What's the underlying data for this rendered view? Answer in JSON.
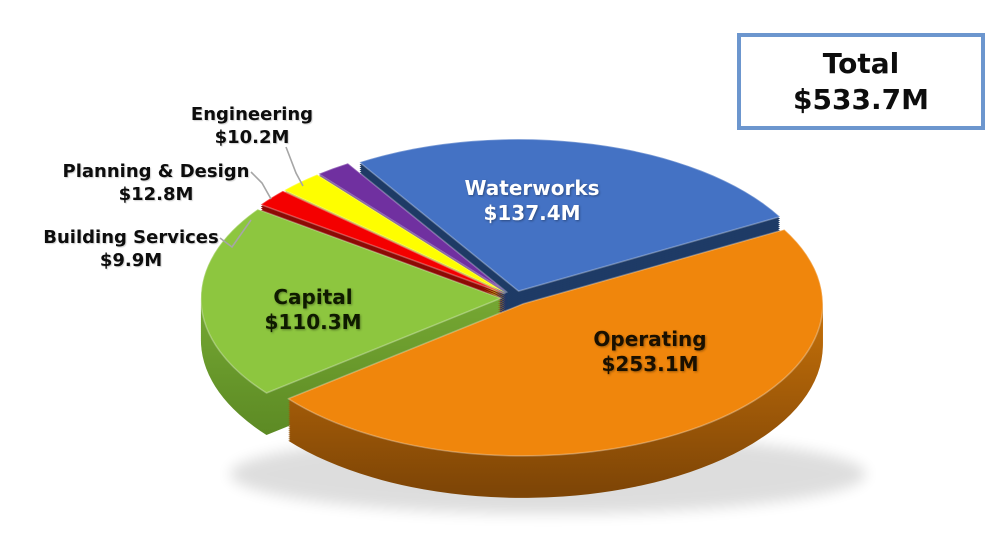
{
  "total_box": {
    "line1": "Total",
    "line2": "$533.7M",
    "border_color": "#6C96CE"
  },
  "chart_data": {
    "type": "pie",
    "style": "3d-exploded",
    "title": "",
    "unit": "$M",
    "total": 533.7,
    "total_label": "$533.7M",
    "start_angle_deg": 122,
    "direction": "clockwise",
    "legend": "none",
    "leader_line_color": "#A6A6A6",
    "slices": [
      {
        "id": "waterworks",
        "name": "Waterworks",
        "value": 137.4,
        "value_label": "$137.4M",
        "color": "#4472C4",
        "side_color": "#1E3B66",
        "label_placement": "inside",
        "label_color": "#FFFFFF"
      },
      {
        "id": "operating",
        "name": "Operating",
        "value": 253.1,
        "value_label": "$253.1M",
        "color": "#F0860C",
        "side_gradient": [
          "#D0770A",
          "#7E4506"
        ],
        "side_color": "#9C5A08",
        "label_placement": "inside",
        "label_color": "#1A1000"
      },
      {
        "id": "capital",
        "name": "Capital",
        "value": 110.3,
        "value_label": "$110.3M",
        "color": "#8DC63F",
        "side_gradient": [
          "#79AC35",
          "#527E1E"
        ],
        "side_color": "#679A2E",
        "label_placement": "inside",
        "label_color": "#0F1A00"
      },
      {
        "id": "building-services",
        "name": "Building Services",
        "value": 9.9,
        "value_label": "$9.9M",
        "color": "#F40000",
        "side_color": "#8D0A05",
        "label_placement": "outside",
        "label_color": "#0d0d0d"
      },
      {
        "id": "planning-design",
        "name": "Planning & Design",
        "value": 12.8,
        "value_label": "$12.8M",
        "color": "#FEFE00",
        "side_color": "#ACA410",
        "label_placement": "outside",
        "label_color": "#0d0d0d"
      },
      {
        "id": "engineering",
        "name": "Engineering",
        "value": 10.2,
        "value_label": "$10.2M",
        "color": "#7030A0",
        "side_color": "#4C2070",
        "label_placement": "outside",
        "label_color": "#0d0d0d"
      }
    ]
  }
}
